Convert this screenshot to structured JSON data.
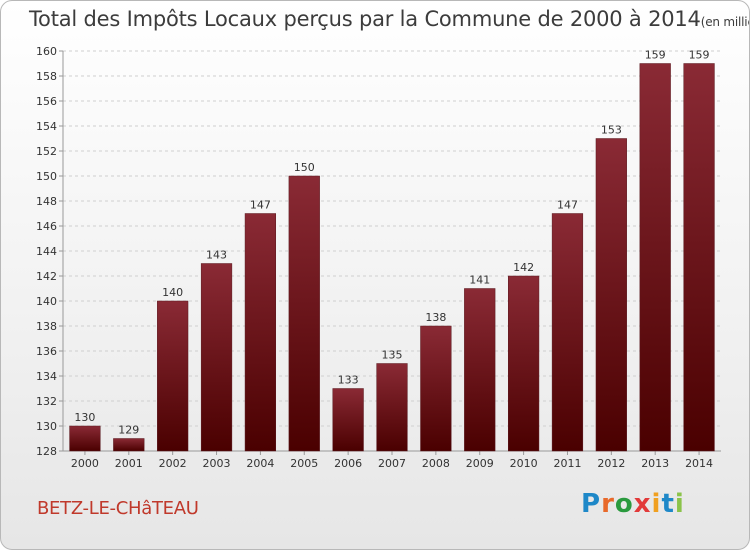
{
  "title": "Total des Impôts Locaux perçus par la Commune de 2000 à 2014",
  "title_unit": "(en milliers d'€)",
  "commune": "BETZ-LE-CHâTEAU",
  "logo": {
    "text": "Proxiti",
    "letters": [
      "P",
      "r",
      "o",
      "x",
      "i",
      "t",
      "i"
    ],
    "colors": [
      "#1e88c8",
      "#e8692a",
      "#2a9a3e",
      "#e23a3a",
      "#f0a020",
      "#1e88c8",
      "#8bc34a"
    ]
  },
  "colors": {
    "bar_top": "#8a2a35",
    "bar_bottom": "#4a0000",
    "grid": "#cfcfcf",
    "axis": "#999999",
    "text": "#333333"
  },
  "chart_data": {
    "type": "bar",
    "title": "Total des Impôts Locaux perçus par la Commune de 2000 à 2014",
    "xlabel": "",
    "ylabel": "",
    "categories": [
      "2000",
      "2001",
      "2002",
      "2003",
      "2004",
      "2005",
      "2006",
      "2007",
      "2008",
      "2009",
      "2010",
      "2011",
      "2012",
      "2013",
      "2014"
    ],
    "values": [
      130,
      129,
      140,
      143,
      147,
      150,
      133,
      135,
      138,
      141,
      142,
      147,
      153,
      159,
      159
    ],
    "ylim": [
      128,
      160
    ],
    "yticks": [
      128,
      130,
      132,
      134,
      136,
      138,
      140,
      142,
      144,
      146,
      148,
      150,
      152,
      154,
      156,
      158,
      160
    ],
    "grid": true,
    "data_labels": true
  }
}
